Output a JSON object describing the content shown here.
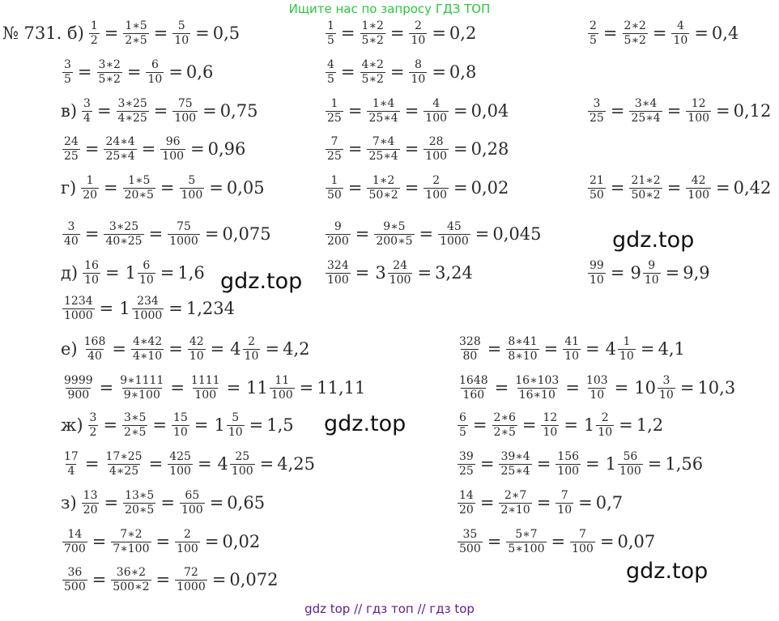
{
  "header": "Ищите нас по запросу ГДЗ ТОП",
  "footer": "gdz top  //  гдз топ  //  гдз top",
  "watermark": "gdz.top",
  "lines": [
    {
      "prefix": "№ 731. б)",
      "tokens": [
        {
          "t": "f",
          "n": "1",
          "d": "2"
        },
        {
          "t": "eq"
        },
        {
          "t": "f",
          "n": "1∗5",
          "d": "2∗5"
        },
        {
          "t": "eq"
        },
        {
          "t": "f",
          "n": "5",
          "d": "10"
        },
        {
          "t": "eq"
        },
        {
          "t": "v",
          "v": "0,5"
        }
      ]
    },
    {
      "tokens": [
        {
          "t": "f",
          "n": "1",
          "d": "5"
        },
        {
          "t": "eq"
        },
        {
          "t": "f",
          "n": "1∗2",
          "d": "5∗2"
        },
        {
          "t": "eq"
        },
        {
          "t": "f",
          "n": "2",
          "d": "10"
        },
        {
          "t": "eq"
        },
        {
          "t": "v",
          "v": "0,2"
        }
      ]
    },
    {
      "tokens": [
        {
          "t": "f",
          "n": "2",
          "d": "5"
        },
        {
          "t": "eq"
        },
        {
          "t": "f",
          "n": "2∗2",
          "d": "5∗2"
        },
        {
          "t": "eq"
        },
        {
          "t": "f",
          "n": "4",
          "d": "10"
        },
        {
          "t": "eq"
        },
        {
          "t": "v",
          "v": "0,4"
        }
      ]
    },
    {
      "tokens": [
        {
          "t": "f",
          "n": "3",
          "d": "5"
        },
        {
          "t": "eq"
        },
        {
          "t": "f",
          "n": "3∗2",
          "d": "5∗2"
        },
        {
          "t": "eq"
        },
        {
          "t": "f",
          "n": "6",
          "d": "10"
        },
        {
          "t": "eq"
        },
        {
          "t": "v",
          "v": "0,6"
        }
      ]
    },
    {
      "tokens": [
        {
          "t": "f",
          "n": "4",
          "d": "5"
        },
        {
          "t": "eq"
        },
        {
          "t": "f",
          "n": "4∗2",
          "d": "5∗2"
        },
        {
          "t": "eq"
        },
        {
          "t": "f",
          "n": "8",
          "d": "10"
        },
        {
          "t": "eq"
        },
        {
          "t": "v",
          "v": "0,8"
        }
      ]
    },
    {
      "prefix": "в)",
      "tokens": [
        {
          "t": "f",
          "n": "3",
          "d": "4"
        },
        {
          "t": "eq"
        },
        {
          "t": "f",
          "n": "3∗25",
          "d": "4∗25"
        },
        {
          "t": "eq"
        },
        {
          "t": "f",
          "n": "75",
          "d": "100"
        },
        {
          "t": "eq"
        },
        {
          "t": "v",
          "v": "0,75"
        }
      ]
    },
    {
      "tokens": [
        {
          "t": "f",
          "n": "1",
          "d": "25"
        },
        {
          "t": "eq"
        },
        {
          "t": "f",
          "n": "1∗4",
          "d": "25∗4"
        },
        {
          "t": "eq"
        },
        {
          "t": "f",
          "n": "4",
          "d": "100"
        },
        {
          "t": "eq"
        },
        {
          "t": "v",
          "v": "0,04"
        }
      ]
    },
    {
      "tokens": [
        {
          "t": "f",
          "n": "3",
          "d": "25"
        },
        {
          "t": "eq"
        },
        {
          "t": "f",
          "n": "3∗4",
          "d": "25∗4"
        },
        {
          "t": "eq"
        },
        {
          "t": "f",
          "n": "12",
          "d": "100"
        },
        {
          "t": "eq"
        },
        {
          "t": "v",
          "v": "0,12"
        }
      ]
    },
    {
      "tokens": [
        {
          "t": "f",
          "n": "24",
          "d": "25"
        },
        {
          "t": "eq"
        },
        {
          "t": "f",
          "n": "24∗4",
          "d": "25∗4"
        },
        {
          "t": "eq"
        },
        {
          "t": "f",
          "n": "96",
          "d": "100"
        },
        {
          "t": "eq"
        },
        {
          "t": "v",
          "v": "0,96"
        }
      ]
    },
    {
      "tokens": [
        {
          "t": "f",
          "n": "7",
          "d": "25"
        },
        {
          "t": "eq"
        },
        {
          "t": "f",
          "n": "7∗4",
          "d": "25∗4"
        },
        {
          "t": "eq"
        },
        {
          "t": "f",
          "n": "28",
          "d": "100"
        },
        {
          "t": "eq"
        },
        {
          "t": "v",
          "v": "0,28"
        }
      ]
    },
    {
      "prefix": "г)",
      "tokens": [
        {
          "t": "f",
          "n": "1",
          "d": "20"
        },
        {
          "t": "eq"
        },
        {
          "t": "f",
          "n": "1∗5",
          "d": "20∗5"
        },
        {
          "t": "eq"
        },
        {
          "t": "f",
          "n": "5",
          "d": "100"
        },
        {
          "t": "eq"
        },
        {
          "t": "v",
          "v": "0,05"
        }
      ]
    },
    {
      "tokens": [
        {
          "t": "f",
          "n": "1",
          "d": "50"
        },
        {
          "t": "eq"
        },
        {
          "t": "f",
          "n": "1∗2",
          "d": "50∗2"
        },
        {
          "t": "eq"
        },
        {
          "t": "f",
          "n": "2",
          "d": "100"
        },
        {
          "t": "eq"
        },
        {
          "t": "v",
          "v": "0,02"
        }
      ]
    },
    {
      "tokens": [
        {
          "t": "f",
          "n": "21",
          "d": "50"
        },
        {
          "t": "eq"
        },
        {
          "t": "f",
          "n": "21∗2",
          "d": "50∗2"
        },
        {
          "t": "eq"
        },
        {
          "t": "f",
          "n": "42",
          "d": "100"
        },
        {
          "t": "eq"
        },
        {
          "t": "v",
          "v": "0,42"
        }
      ]
    },
    {
      "tokens": [
        {
          "t": "f",
          "n": "3",
          "d": "40"
        },
        {
          "t": "eq"
        },
        {
          "t": "f",
          "n": "3∗25",
          "d": "40∗25"
        },
        {
          "t": "eq"
        },
        {
          "t": "f",
          "n": "75",
          "d": "1000"
        },
        {
          "t": "eq"
        },
        {
          "t": "v",
          "v": "0,075"
        }
      ]
    },
    {
      "tokens": [
        {
          "t": "f",
          "n": "9",
          "d": "200"
        },
        {
          "t": "eq"
        },
        {
          "t": "f",
          "n": "9∗5",
          "d": "200∗5"
        },
        {
          "t": "eq"
        },
        {
          "t": "f",
          "n": "45",
          "d": "1000"
        },
        {
          "t": "eq"
        },
        {
          "t": "v",
          "v": "0,045"
        }
      ]
    },
    {
      "prefix": "д)",
      "tokens": [
        {
          "t": "f",
          "n": "16",
          "d": "10"
        },
        {
          "t": "eq"
        },
        {
          "t": "m",
          "w": "1",
          "n": "6",
          "d": "10"
        },
        {
          "t": "eq"
        },
        {
          "t": "v",
          "v": "1,6"
        }
      ]
    },
    {
      "tokens": [
        {
          "t": "f",
          "n": "324",
          "d": "100"
        },
        {
          "t": "eq"
        },
        {
          "t": "m",
          "w": "3",
          "n": "24",
          "d": "100"
        },
        {
          "t": "eq"
        },
        {
          "t": "v",
          "v": "3,24"
        }
      ]
    },
    {
      "tokens": [
        {
          "t": "f",
          "n": "99",
          "d": "10"
        },
        {
          "t": "eq"
        },
        {
          "t": "m",
          "w": "9",
          "n": "9",
          "d": "10"
        },
        {
          "t": "eq"
        },
        {
          "t": "v",
          "v": "9,9"
        }
      ]
    },
    {
      "tokens": [
        {
          "t": "f",
          "n": "1234",
          "d": "1000"
        },
        {
          "t": "eq"
        },
        {
          "t": "m",
          "w": "1",
          "n": "234",
          "d": "1000"
        },
        {
          "t": "eq"
        },
        {
          "t": "v",
          "v": "1,234"
        }
      ]
    },
    {
      "prefix": "е)",
      "tokens": [
        {
          "t": "f",
          "n": "168",
          "d": "40"
        },
        {
          "t": "eq"
        },
        {
          "t": "f",
          "n": "4∗42",
          "d": "4∗10"
        },
        {
          "t": "eq"
        },
        {
          "t": "f",
          "n": "42",
          "d": "10"
        },
        {
          "t": "eq"
        },
        {
          "t": "m",
          "w": "4",
          "n": "2",
          "d": "10"
        },
        {
          "t": "eq"
        },
        {
          "t": "v",
          "v": "4,2"
        }
      ]
    },
    {
      "tokens": [
        {
          "t": "f",
          "n": "328",
          "d": "80"
        },
        {
          "t": "eq"
        },
        {
          "t": "f",
          "n": "8∗41",
          "d": "8∗10"
        },
        {
          "t": "eq"
        },
        {
          "t": "f",
          "n": "41",
          "d": "10"
        },
        {
          "t": "eq"
        },
        {
          "t": "m",
          "w": "4",
          "n": "1",
          "d": "10"
        },
        {
          "t": "eq"
        },
        {
          "t": "v",
          "v": "4,1"
        }
      ]
    },
    {
      "tokens": [
        {
          "t": "f",
          "n": "9999",
          "d": "900"
        },
        {
          "t": "eq"
        },
        {
          "t": "f",
          "n": "9∗1111",
          "d": "9∗100"
        },
        {
          "t": "eq"
        },
        {
          "t": "f",
          "n": "1111",
          "d": "100"
        },
        {
          "t": "eq"
        },
        {
          "t": "m",
          "w": "11",
          "n": "11",
          "d": "100"
        },
        {
          "t": "eq"
        },
        {
          "t": "v",
          "v": "11,11"
        }
      ]
    },
    {
      "tokens": [
        {
          "t": "f",
          "n": "1648",
          "d": "160"
        },
        {
          "t": "eq"
        },
        {
          "t": "f",
          "n": "16∗103",
          "d": "16∗10"
        },
        {
          "t": "eq"
        },
        {
          "t": "f",
          "n": "103",
          "d": "10"
        },
        {
          "t": "eq"
        },
        {
          "t": "m",
          "w": "10",
          "n": "3",
          "d": "10"
        },
        {
          "t": "eq"
        },
        {
          "t": "v",
          "v": "10,3"
        }
      ]
    },
    {
      "prefix": "ж)",
      "tokens": [
        {
          "t": "f",
          "n": "3",
          "d": "2"
        },
        {
          "t": "eq"
        },
        {
          "t": "f",
          "n": "3∗5",
          "d": "2∗5"
        },
        {
          "t": "eq"
        },
        {
          "t": "f",
          "n": "15",
          "d": "10"
        },
        {
          "t": "eq"
        },
        {
          "t": "m",
          "w": "1",
          "n": "5",
          "d": "10"
        },
        {
          "t": "eq"
        },
        {
          "t": "v",
          "v": "1,5"
        }
      ]
    },
    {
      "tokens": [
        {
          "t": "f",
          "n": "6",
          "d": "5"
        },
        {
          "t": "eq"
        },
        {
          "t": "f",
          "n": "2∗6",
          "d": "2∗5"
        },
        {
          "t": "eq"
        },
        {
          "t": "f",
          "n": "12",
          "d": "10"
        },
        {
          "t": "eq"
        },
        {
          "t": "m",
          "w": "1",
          "n": "2",
          "d": "10"
        },
        {
          "t": "eq"
        },
        {
          "t": "v",
          "v": "1,2"
        }
      ]
    },
    {
      "tokens": [
        {
          "t": "f",
          "n": "17",
          "d": "4"
        },
        {
          "t": "eq"
        },
        {
          "t": "f",
          "n": "17∗25",
          "d": "4∗25"
        },
        {
          "t": "eq"
        },
        {
          "t": "f",
          "n": "425",
          "d": "100"
        },
        {
          "t": "eq"
        },
        {
          "t": "m",
          "w": "4",
          "n": "25",
          "d": "100"
        },
        {
          "t": "eq"
        },
        {
          "t": "v",
          "v": "4,25"
        }
      ]
    },
    {
      "tokens": [
        {
          "t": "f",
          "n": "39",
          "d": "25"
        },
        {
          "t": "eq"
        },
        {
          "t": "f",
          "n": "39∗4",
          "d": "25∗4"
        },
        {
          "t": "eq"
        },
        {
          "t": "f",
          "n": "156",
          "d": "100"
        },
        {
          "t": "eq"
        },
        {
          "t": "m",
          "w": "1",
          "n": "56",
          "d": "100"
        },
        {
          "t": "eq"
        },
        {
          "t": "v",
          "v": "1,56"
        }
      ]
    },
    {
      "prefix": "з)",
      "tokens": [
        {
          "t": "f",
          "n": "13",
          "d": "20"
        },
        {
          "t": "eq"
        },
        {
          "t": "f",
          "n": "13∗5",
          "d": "20∗5"
        },
        {
          "t": "eq"
        },
        {
          "t": "f",
          "n": "65",
          "d": "100"
        },
        {
          "t": "eq"
        },
        {
          "t": "v",
          "v": "0,65"
        }
      ]
    },
    {
      "tokens": [
        {
          "t": "f",
          "n": "14",
          "d": "20"
        },
        {
          "t": "eq"
        },
        {
          "t": "f",
          "n": "2∗7",
          "d": "2∗10"
        },
        {
          "t": "eq"
        },
        {
          "t": "f",
          "n": "7",
          "d": "10"
        },
        {
          "t": "eq"
        },
        {
          "t": "v",
          "v": "0,7"
        }
      ]
    },
    {
      "tokens": [
        {
          "t": "f",
          "n": "14",
          "d": "700"
        },
        {
          "t": "eq"
        },
        {
          "t": "f",
          "n": "7∗2",
          "d": "7∗100"
        },
        {
          "t": "eq"
        },
        {
          "t": "f",
          "n": "2",
          "d": "100"
        },
        {
          "t": "eq"
        },
        {
          "t": "v",
          "v": "0,02"
        }
      ]
    },
    {
      "tokens": [
        {
          "t": "f",
          "n": "35",
          "d": "500"
        },
        {
          "t": "eq"
        },
        {
          "t": "f",
          "n": "5∗7",
          "d": "5∗100"
        },
        {
          "t": "eq"
        },
        {
          "t": "f",
          "n": "7",
          "d": "100"
        },
        {
          "t": "eq"
        },
        {
          "t": "v",
          "v": "0,07"
        }
      ]
    },
    {
      "tokens": [
        {
          "t": "f",
          "n": "36",
          "d": "500"
        },
        {
          "t": "eq"
        },
        {
          "t": "f",
          "n": "36∗2",
          "d": "500∗2"
        },
        {
          "t": "eq"
        },
        {
          "t": "f",
          "n": "72",
          "d": "1000"
        },
        {
          "t": "eq"
        },
        {
          "t": "v",
          "v": "0,072"
        }
      ]
    }
  ]
}
